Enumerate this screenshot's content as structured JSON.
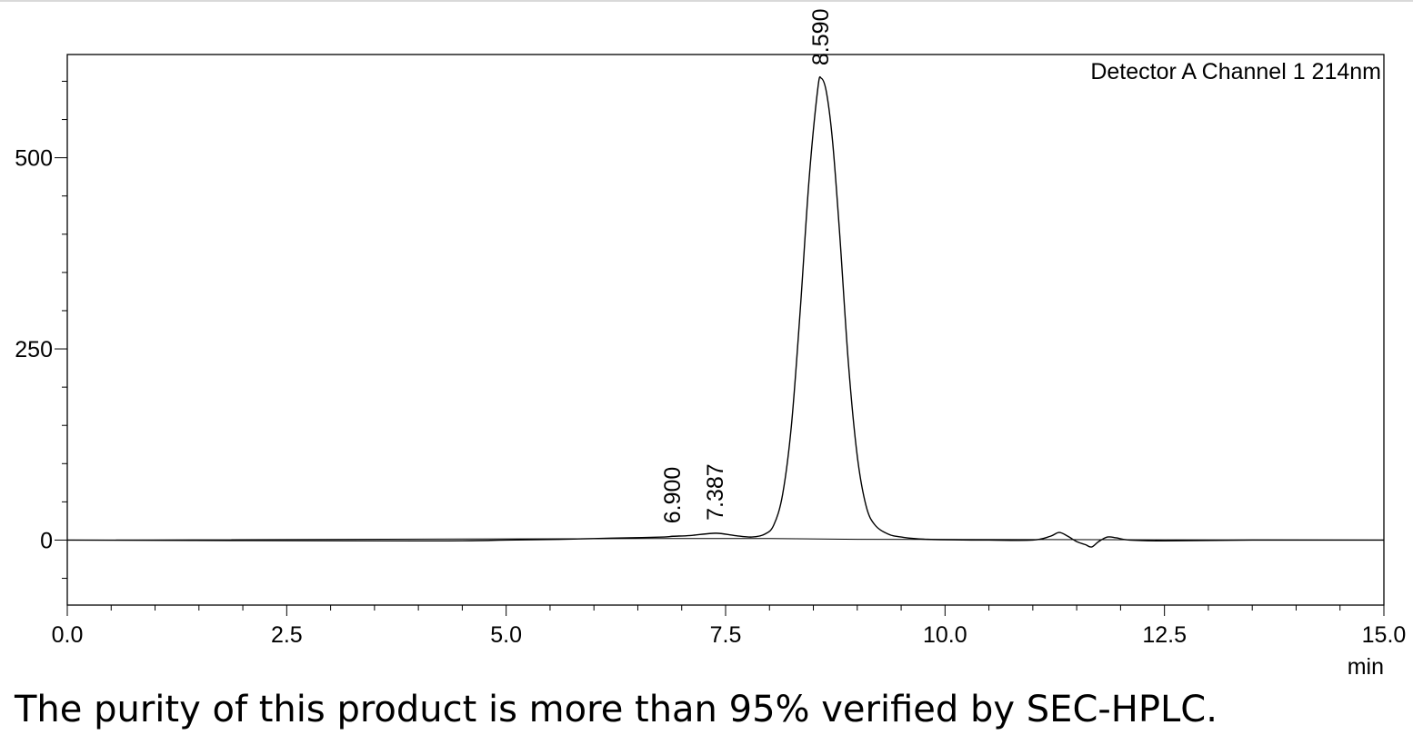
{
  "caption": "The purity of this product is more than 95% verified by SEC-HPLC.",
  "chart_data": {
    "type": "line",
    "title": "Detector A Channel 1 214nm",
    "xlabel": "min",
    "ylabel": "",
    "xlim": [
      0,
      15
    ],
    "ylim": [
      -85,
      635
    ],
    "grid": false,
    "x_ticks": [
      "0.0",
      "2.5",
      "5.0",
      "7.5",
      "10.0",
      "12.5",
      "15.0"
    ],
    "y_ticks": [
      "0",
      "250",
      "500"
    ],
    "peak_labels": [
      {
        "x": 6.9,
        "label": "6.900",
        "y": 5
      },
      {
        "x": 7.387,
        "label": "7.387",
        "y": 9
      },
      {
        "x": 8.59,
        "label": "8.590",
        "y": 604
      }
    ],
    "baseline": [
      [
        0,
        0
      ],
      [
        6.6,
        2
      ],
      [
        8.0,
        2
      ],
      [
        9.0,
        1
      ],
      [
        15.0,
        0
      ]
    ],
    "series": [
      {
        "x": [
          0,
          4.0,
          5.0,
          5.6,
          6.0,
          6.4,
          6.8,
          6.9,
          7.1,
          7.387,
          7.6,
          7.8,
          7.95,
          8.05,
          8.15,
          8.25,
          8.35,
          8.45,
          8.55,
          8.59,
          8.65,
          8.72,
          8.8,
          8.9,
          9.0,
          9.1,
          9.2,
          9.35,
          9.5,
          9.8,
          10.5,
          11.0,
          11.2,
          11.3,
          11.4,
          11.5,
          11.6,
          11.67,
          11.75,
          11.85,
          11.95,
          12.1,
          12.5,
          13.5,
          15.0
        ],
        "y": [
          0,
          -1,
          0,
          1,
          2,
          3,
          4,
          5,
          6,
          9,
          6,
          4,
          8,
          20,
          60,
          150,
          300,
          470,
          590,
          604,
          585,
          520,
          400,
          230,
          110,
          45,
          20,
          8,
          4,
          1,
          0,
          0,
          5,
          10,
          5,
          -2,
          -6,
          -9,
          -2,
          4,
          3,
          0,
          -1,
          0,
          0
        ]
      }
    ]
  }
}
